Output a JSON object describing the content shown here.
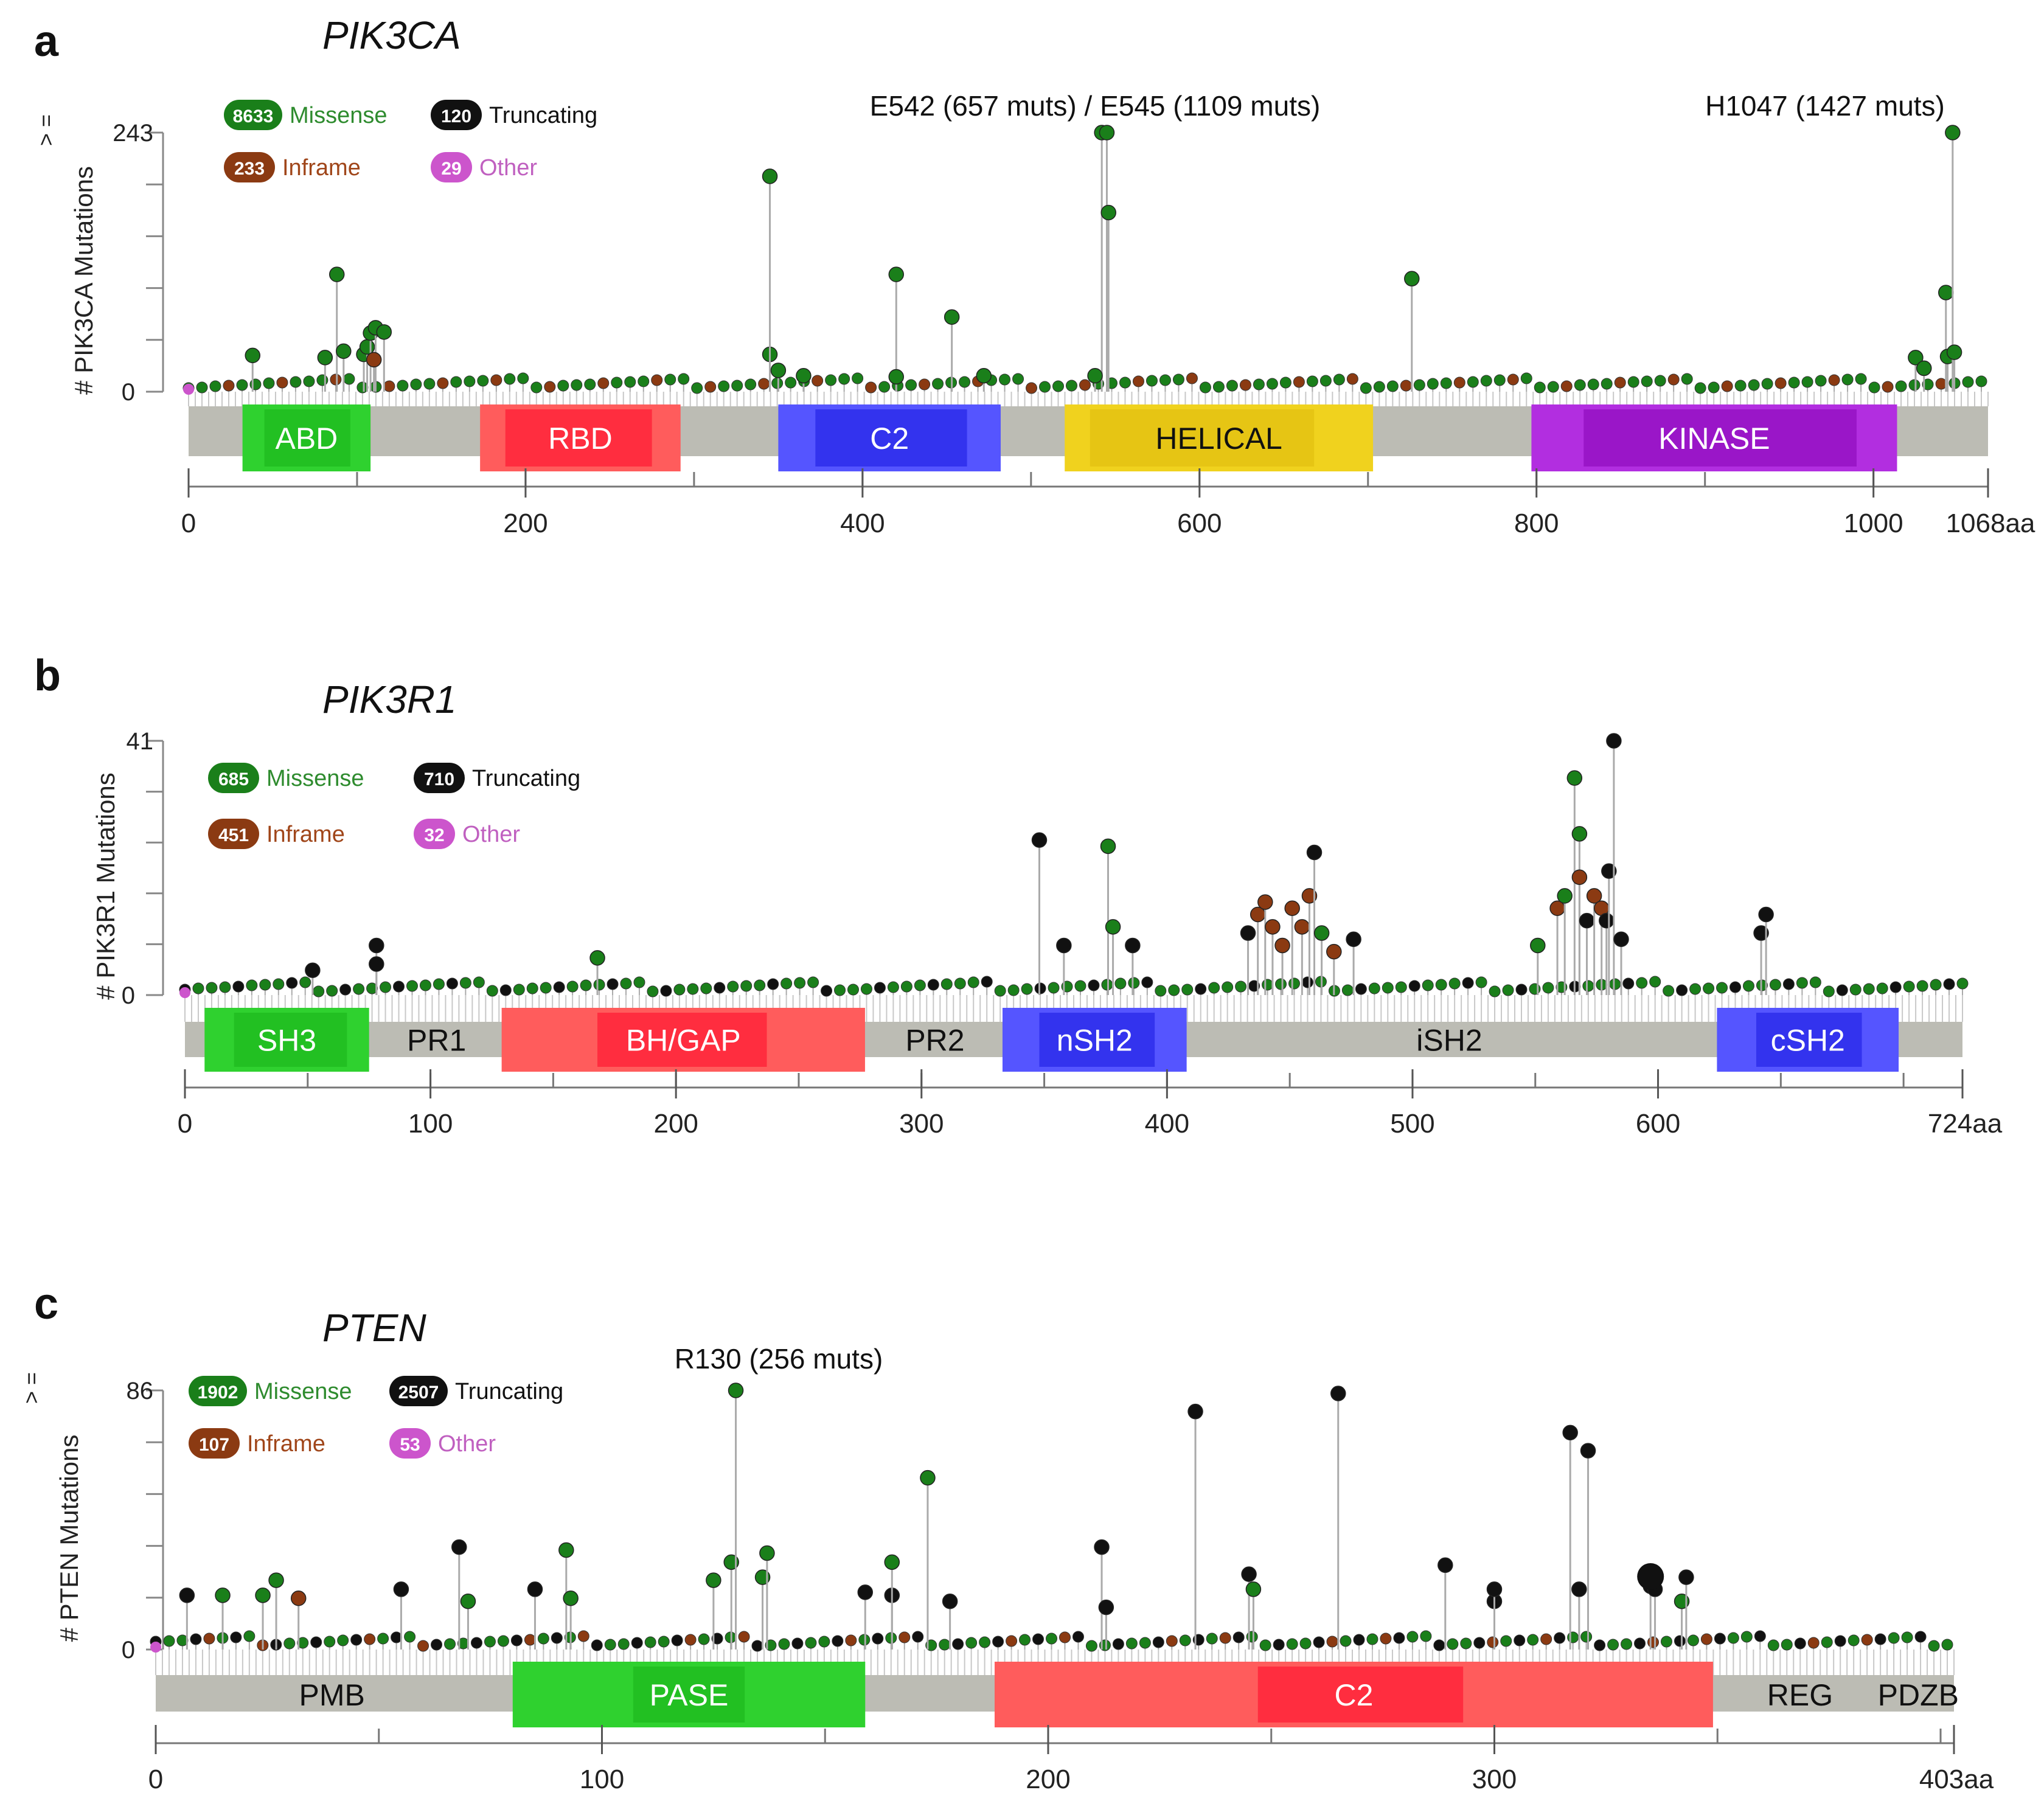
{
  "colors": {
    "missense": "#1a7f1a",
    "missense_text": "#2e8b2e",
    "truncating": "#111111",
    "inframe": "#8b3a12",
    "inframe_text": "#a0461a",
    "other": "#cc55cc",
    "other_text": "#c060c0",
    "backbone": "#bcbcb4",
    "stem": "#aaaaaa"
  },
  "chart_data": [
    {
      "panel_letter": "a",
      "gene": "PIK3CA",
      "type": "lollipop",
      "ylabel": "# PIK3CA Mutations",
      "y_top_label": "243",
      "y_top_prefix": "> =",
      "y_bottom_label": "0",
      "ylim": [
        0,
        243
      ],
      "xlim": [
        0,
        1068
      ],
      "x_ticks": [
        "0",
        "200",
        "400",
        "600",
        "800",
        "1000"
      ],
      "x_tick_values": [
        0,
        200,
        400,
        600,
        800,
        1000
      ],
      "x_end_label": "1068aa",
      "legend": [
        {
          "count": "8633",
          "label": "Missense",
          "kind": "missense"
        },
        {
          "count": "120",
          "label": "Truncating",
          "kind": "truncating"
        },
        {
          "count": "233",
          "label": "Inframe",
          "kind": "inframe"
        },
        {
          "count": "29",
          "label": "Other",
          "kind": "other"
        }
      ],
      "annotations": [
        {
          "text": "E542 (657 muts) / E545 (1109 muts)",
          "x": 545
        },
        {
          "text": "H1047 (1427 muts)",
          "x": 1047
        }
      ],
      "domains": [
        {
          "name": "ABD",
          "start": 32,
          "end": 108,
          "inner_start": 45,
          "inner_end": 96,
          "color": "#2fd12f",
          "inner": "#22c022",
          "label_color": "#ffffff"
        },
        {
          "name": "RBD",
          "start": 173,
          "end": 292,
          "inner_start": 188,
          "inner_end": 275,
          "color": "#ff5c5c",
          "inner": "#ff2d3f",
          "label_color": "#ffffff"
        },
        {
          "name": "C2",
          "start": 350,
          "end": 482,
          "inner_start": 372,
          "inner_end": 462,
          "color": "#5555ff",
          "inner": "#3333ee",
          "label_color": "#ffffff"
        },
        {
          "name": "HELICAL",
          "start": 520,
          "end": 703,
          "inner_start": 535,
          "inner_end": 668,
          "color": "#f0d21e",
          "inner": "#e6c514",
          "label_color": "#111111"
        },
        {
          "name": "KINASE",
          "start": 797,
          "end": 1014,
          "inner_start": 828,
          "inner_end": 990,
          "color": "#b22ee0",
          "inner": "#9a16c8",
          "label_color": "#ffffff"
        }
      ],
      "lollipops": [
        {
          "pos": 38,
          "count": 34,
          "kind": "missense"
        },
        {
          "pos": 81,
          "count": 32,
          "kind": "missense"
        },
        {
          "pos": 88,
          "count": 110,
          "kind": "missense"
        },
        {
          "pos": 92,
          "count": 38,
          "kind": "missense"
        },
        {
          "pos": 104,
          "count": 35,
          "kind": "missense"
        },
        {
          "pos": 106,
          "count": 42,
          "kind": "missense"
        },
        {
          "pos": 108,
          "count": 55,
          "kind": "missense"
        },
        {
          "pos": 111,
          "count": 60,
          "kind": "missense"
        },
        {
          "pos": 116,
          "count": 56,
          "kind": "missense"
        },
        {
          "pos": 110,
          "count": 30,
          "kind": "inframe"
        },
        {
          "pos": 345,
          "count": 35,
          "kind": "missense"
        },
        {
          "pos": 345,
          "count": 202,
          "kind": "missense"
        },
        {
          "pos": 350,
          "count": 20,
          "kind": "missense"
        },
        {
          "pos": 365,
          "count": 15,
          "kind": "missense"
        },
        {
          "pos": 420,
          "count": 110,
          "kind": "missense"
        },
        {
          "pos": 420,
          "count": 14,
          "kind": "missense"
        },
        {
          "pos": 453,
          "count": 70,
          "kind": "missense"
        },
        {
          "pos": 472,
          "count": 15,
          "kind": "missense"
        },
        {
          "pos": 542,
          "count": 243,
          "kind": "missense"
        },
        {
          "pos": 545,
          "count": 243,
          "kind": "missense"
        },
        {
          "pos": 546,
          "count": 168,
          "kind": "missense"
        },
        {
          "pos": 538,
          "count": 15,
          "kind": "missense"
        },
        {
          "pos": 726,
          "count": 106,
          "kind": "missense"
        },
        {
          "pos": 1043,
          "count": 93,
          "kind": "missense"
        },
        {
          "pos": 1044,
          "count": 33,
          "kind": "missense"
        },
        {
          "pos": 1047,
          "count": 243,
          "kind": "missense"
        },
        {
          "pos": 1048,
          "count": 37,
          "kind": "missense"
        },
        {
          "pos": 1025,
          "count": 32,
          "kind": "missense"
        },
        {
          "pos": 1030,
          "count": 22,
          "kind": "missense"
        }
      ]
    },
    {
      "panel_letter": "b",
      "gene": "PIK3R1",
      "type": "lollipop",
      "ylabel": "# PIK3R1 Mutations",
      "y_top_label": "41",
      "y_top_prefix": "",
      "y_bottom_label": "0",
      "ylim": [
        0,
        41
      ],
      "xlim": [
        0,
        724
      ],
      "x_ticks": [
        "0",
        "100",
        "200",
        "300",
        "400",
        "500",
        "600"
      ],
      "x_tick_values": [
        0,
        100,
        200,
        300,
        400,
        500,
        600
      ],
      "x_end_label": "724aa",
      "legend": [
        {
          "count": "685",
          "label": "Missense",
          "kind": "missense"
        },
        {
          "count": "710",
          "label": "Truncating",
          "kind": "truncating"
        },
        {
          "count": "451",
          "label": "Inframe",
          "kind": "inframe"
        },
        {
          "count": "32",
          "label": "Other",
          "kind": "other"
        }
      ],
      "annotations": [],
      "domains": [
        {
          "name": "SH3",
          "start": 8,
          "end": 75,
          "inner_start": 20,
          "inner_end": 66,
          "color": "#2fd12f",
          "inner": "#22c022",
          "label_color": "#ffffff"
        },
        {
          "name": "PR1",
          "start": 78,
          "end": 127,
          "inner_start": 78,
          "inner_end": 127,
          "color": "transparent",
          "inner": "transparent",
          "label_color": "#111111"
        },
        {
          "name": "BH/GAP",
          "start": 129,
          "end": 277,
          "inner_start": 168,
          "inner_end": 237,
          "color": "#ff5c5c",
          "inner": "#ff2d3f",
          "label_color": "#ffffff"
        },
        {
          "name": "PR2",
          "start": 278,
          "end": 333,
          "inner_start": 278,
          "inner_end": 333,
          "color": "transparent",
          "inner": "transparent",
          "label_color": "#111111"
        },
        {
          "name": "nSH2",
          "start": 333,
          "end": 408,
          "inner_start": 348,
          "inner_end": 395,
          "color": "#5555ff",
          "inner": "#3333ee",
          "label_color": "#ffffff"
        },
        {
          "name": "iSH2",
          "start": 410,
          "end": 620,
          "inner_start": 410,
          "inner_end": 620,
          "color": "transparent",
          "inner": "transparent",
          "label_color": "#111111"
        },
        {
          "name": "cSH2",
          "start": 624,
          "end": 698,
          "inner_start": 640,
          "inner_end": 683,
          "color": "#5555ff",
          "inner": "#3333ee",
          "label_color": "#ffffff"
        }
      ],
      "lollipops": [
        {
          "pos": 52,
          "count": 4,
          "kind": "truncating"
        },
        {
          "pos": 78,
          "count": 8,
          "kind": "truncating"
        },
        {
          "pos": 78,
          "count": 5,
          "kind": "truncating"
        },
        {
          "pos": 168,
          "count": 6,
          "kind": "missense"
        },
        {
          "pos": 348,
          "count": 25,
          "kind": "truncating"
        },
        {
          "pos": 358,
          "count": 8,
          "kind": "truncating"
        },
        {
          "pos": 376,
          "count": 24,
          "kind": "missense"
        },
        {
          "pos": 378,
          "count": 11,
          "kind": "missense"
        },
        {
          "pos": 386,
          "count": 8,
          "kind": "truncating"
        },
        {
          "pos": 433,
          "count": 10,
          "kind": "truncating"
        },
        {
          "pos": 437,
          "count": 13,
          "kind": "inframe"
        },
        {
          "pos": 440,
          "count": 15,
          "kind": "inframe"
        },
        {
          "pos": 443,
          "count": 11,
          "kind": "inframe"
        },
        {
          "pos": 447,
          "count": 8,
          "kind": "inframe"
        },
        {
          "pos": 451,
          "count": 14,
          "kind": "inframe"
        },
        {
          "pos": 455,
          "count": 11,
          "kind": "inframe"
        },
        {
          "pos": 458,
          "count": 16,
          "kind": "inframe"
        },
        {
          "pos": 460,
          "count": 23,
          "kind": "truncating"
        },
        {
          "pos": 463,
          "count": 10,
          "kind": "missense"
        },
        {
          "pos": 468,
          "count": 7,
          "kind": "inframe"
        },
        {
          "pos": 476,
          "count": 9,
          "kind": "truncating"
        },
        {
          "pos": 551,
          "count": 8,
          "kind": "missense"
        },
        {
          "pos": 559,
          "count": 14,
          "kind": "inframe"
        },
        {
          "pos": 562,
          "count": 16,
          "kind": "missense"
        },
        {
          "pos": 566,
          "count": 35,
          "kind": "missense"
        },
        {
          "pos": 568,
          "count": 26,
          "kind": "missense"
        },
        {
          "pos": 568,
          "count": 19,
          "kind": "inframe"
        },
        {
          "pos": 571,
          "count": 12,
          "kind": "truncating"
        },
        {
          "pos": 574,
          "count": 16,
          "kind": "inframe"
        },
        {
          "pos": 577,
          "count": 14,
          "kind": "inframe"
        },
        {
          "pos": 579,
          "count": 12,
          "kind": "truncating"
        },
        {
          "pos": 580,
          "count": 20,
          "kind": "truncating"
        },
        {
          "pos": 582,
          "count": 41,
          "kind": "truncating"
        },
        {
          "pos": 585,
          "count": 9,
          "kind": "truncating"
        },
        {
          "pos": 642,
          "count": 10,
          "kind": "truncating"
        },
        {
          "pos": 644,
          "count": 13,
          "kind": "truncating"
        }
      ]
    },
    {
      "panel_letter": "c",
      "gene": "PTEN",
      "type": "lollipop",
      "ylabel": "# PTEN Mutations",
      "y_top_label": "86",
      "y_top_prefix": "> =",
      "y_bottom_label": "0",
      "ylim": [
        0,
        86
      ],
      "xlim": [
        0,
        403
      ],
      "x_ticks": [
        "0",
        "100",
        "200",
        "300"
      ],
      "x_tick_values": [
        0,
        100,
        200,
        300
      ],
      "x_end_label": "403aa",
      "legend": [
        {
          "count": "1902",
          "label": "Missense",
          "kind": "missense"
        },
        {
          "count": "2507",
          "label": "Truncating",
          "kind": "truncating"
        },
        {
          "count": "107",
          "label": "Inframe",
          "kind": "inframe"
        },
        {
          "count": "53",
          "label": "Other",
          "kind": "other"
        }
      ],
      "annotations": [
        {
          "text": "R130 (256 muts)",
          "x": 130
        }
      ],
      "domains": [
        {
          "name": "PMB",
          "start": 0,
          "end": 79,
          "inner_start": 0,
          "inner_end": 79,
          "color": "transparent",
          "inner": "transparent",
          "label_color": "#111111"
        },
        {
          "name": "PASE",
          "start": 80,
          "end": 159,
          "inner_start": 107,
          "inner_end": 132,
          "color": "#2fd12f",
          "inner": "#22c022",
          "label_color": "#ffffff"
        },
        {
          "name": "C2",
          "start": 188,
          "end": 349,
          "inner_start": 247,
          "inner_end": 293,
          "color": "#ff5c5c",
          "inner": "#ff2d3f",
          "label_color": "#ffffff"
        },
        {
          "name": "REG",
          "start": 352,
          "end": 385,
          "inner_start": 352,
          "inner_end": 385,
          "color": "transparent",
          "inner": "transparent",
          "label_color": "#111111"
        },
        {
          "name": "PDZB",
          "start": 387,
          "end": 403,
          "inner_start": 387,
          "inner_end": 403,
          "color": "transparent",
          "inner": "transparent",
          "label_color": "#111111"
        }
      ],
      "lollipops": [
        {
          "pos": 7,
          "count": 18,
          "kind": "truncating"
        },
        {
          "pos": 15,
          "count": 18,
          "kind": "missense"
        },
        {
          "pos": 24,
          "count": 18,
          "kind": "missense"
        },
        {
          "pos": 27,
          "count": 23,
          "kind": "missense"
        },
        {
          "pos": 32,
          "count": 17,
          "kind": "inframe"
        },
        {
          "pos": 55,
          "count": 20,
          "kind": "truncating"
        },
        {
          "pos": 68,
          "count": 34,
          "kind": "truncating"
        },
        {
          "pos": 70,
          "count": 16,
          "kind": "missense"
        },
        {
          "pos": 85,
          "count": 20,
          "kind": "truncating"
        },
        {
          "pos": 92,
          "count": 33,
          "kind": "missense"
        },
        {
          "pos": 93,
          "count": 17,
          "kind": "missense"
        },
        {
          "pos": 125,
          "count": 23,
          "kind": "missense"
        },
        {
          "pos": 129,
          "count": 29,
          "kind": "missense"
        },
        {
          "pos": 130,
          "count": 86,
          "kind": "missense"
        },
        {
          "pos": 136,
          "count": 24,
          "kind": "missense"
        },
        {
          "pos": 137,
          "count": 32,
          "kind": "missense"
        },
        {
          "pos": 159,
          "count": 19,
          "kind": "truncating"
        },
        {
          "pos": 165,
          "count": 18,
          "kind": "truncating"
        },
        {
          "pos": 165,
          "count": 29,
          "kind": "missense"
        },
        {
          "pos": 173,
          "count": 57,
          "kind": "missense"
        },
        {
          "pos": 178,
          "count": 16,
          "kind": "truncating"
        },
        {
          "pos": 212,
          "count": 34,
          "kind": "truncating"
        },
        {
          "pos": 213,
          "count": 14,
          "kind": "truncating"
        },
        {
          "pos": 233,
          "count": 79,
          "kind": "truncating"
        },
        {
          "pos": 245,
          "count": 25,
          "kind": "truncating"
        },
        {
          "pos": 246,
          "count": 20,
          "kind": "missense"
        },
        {
          "pos": 265,
          "count": 85,
          "kind": "truncating"
        },
        {
          "pos": 289,
          "count": 28,
          "kind": "truncating"
        },
        {
          "pos": 300,
          "count": 16,
          "kind": "truncating"
        },
        {
          "pos": 300,
          "count": 20,
          "kind": "truncating"
        },
        {
          "pos": 317,
          "count": 72,
          "kind": "truncating"
        },
        {
          "pos": 319,
          "count": 20,
          "kind": "truncating"
        },
        {
          "pos": 321,
          "count": 66,
          "kind": "truncating"
        },
        {
          "pos": 335,
          "count": 21,
          "kind": "truncating"
        },
        {
          "pos": 336,
          "count": 20,
          "kind": "truncating"
        },
        {
          "pos": 342,
          "count": 16,
          "kind": "missense"
        },
        {
          "pos": 343,
          "count": 24,
          "kind": "truncating"
        }
      ]
    }
  ]
}
